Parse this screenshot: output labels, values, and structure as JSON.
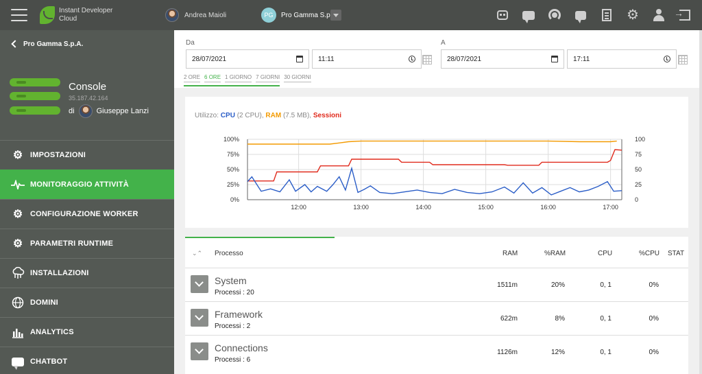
{
  "topbar": {
    "brand_line1": "Instant Developer",
    "brand_line2": "Cloud",
    "user_name": "Andrea Maioli",
    "company_initials": "PG",
    "company_name": "Pro Gamma S.p.A.",
    "icons": [
      "robot-icon",
      "chat-icon",
      "support-icon",
      "feedback-icon",
      "document-icon",
      "gear-icon",
      "user-icon",
      "logout-icon"
    ]
  },
  "sidebar": {
    "back_label": "Pro Gamma S.p.A.",
    "console_title": "Console",
    "console_ip": "35.187.42.164",
    "console_by": "di",
    "console_owner": "Giuseppe Lanzi",
    "items": [
      {
        "label": "IMPOSTAZIONI",
        "icon": "gear-icon"
      },
      {
        "label": "MONITORAGGIO ATTIVITÀ",
        "icon": "pulse-icon",
        "active": true
      },
      {
        "label": "CONFIGURAZIONE WORKER",
        "icon": "gear-icon"
      },
      {
        "label": "PARAMETRI RUNTIME",
        "icon": "gear-icon"
      },
      {
        "label": "INSTALLAZIONI",
        "icon": "cloud-icon"
      },
      {
        "label": "DOMINI",
        "icon": "globe-icon"
      },
      {
        "label": "ANALYTICS",
        "icon": "bar-chart-icon"
      },
      {
        "label": "CHATBOT",
        "icon": "chat-icon"
      }
    ]
  },
  "filters": {
    "from_label": "Da",
    "to_label": "A",
    "from_date": "28/07/2021",
    "from_time": "11:11",
    "to_date": "28/07/2021",
    "to_time": "17:11",
    "quick_ranges": [
      "2 ORE",
      "6 ORE",
      "1 GIORNO",
      "7 GIORNI",
      "30 GIORNI"
    ],
    "quick_selected": "6 ORE"
  },
  "legend": {
    "prefix": "Utilizzo:",
    "cpu": "CPU",
    "cpu_detail": "(2 CPU),",
    "ram": "RAM",
    "ram_detail": "(7.5 MB),",
    "sessions": "Sessioni"
  },
  "colors": {
    "cpu": "#2a5dc7",
    "ram": "#f39a00",
    "sessions": "#e02a1c",
    "accent": "#43b24a"
  },
  "chart_data": {
    "type": "line",
    "x_ticks": [
      "12:00",
      "13:00",
      "14:00",
      "15:00",
      "16:00",
      "17:00"
    ],
    "x_start": 11.18,
    "x_end": 17.18,
    "y_left_ticks": [
      "100%",
      "75%",
      "50%",
      "25%",
      "0%"
    ],
    "y_right_ticks": [
      "100",
      "75",
      "50",
      "25",
      "0"
    ],
    "ylim": [
      0,
      100
    ],
    "grid": true,
    "series": [
      {
        "name": "RAM",
        "x": [
          11.18,
          11.6,
          12.5,
          12.65,
          12.8,
          13.0,
          14.0,
          15.0,
          16.0,
          16.5,
          17.0,
          17.1
        ],
        "values": [
          92,
          92,
          92,
          94,
          96,
          97,
          97,
          97,
          97,
          96,
          96,
          97
        ]
      },
      {
        "name": "Sessioni",
        "x": [
          11.18,
          11.6,
          11.65,
          12.3,
          12.35,
          12.8,
          12.85,
          13.6,
          13.65,
          14.1,
          14.15,
          15.3,
          15.35,
          15.85,
          15.9,
          16.95,
          17.0,
          17.07,
          17.18
        ],
        "values": [
          31,
          31,
          46,
          46,
          56,
          56,
          67,
          67,
          62,
          62,
          58,
          58,
          57,
          57,
          62,
          62,
          65,
          83,
          82
        ]
      },
      {
        "name": "CPU",
        "x": [
          11.18,
          11.25,
          11.4,
          11.55,
          11.7,
          11.85,
          11.95,
          12.1,
          12.2,
          12.3,
          12.45,
          12.55,
          12.65,
          12.75,
          12.85,
          12.95,
          13.05,
          13.15,
          13.3,
          13.5,
          13.7,
          13.9,
          14.1,
          14.3,
          14.5,
          14.7,
          14.9,
          15.1,
          15.3,
          15.45,
          15.6,
          15.75,
          15.9,
          16.05,
          16.2,
          16.35,
          16.5,
          16.65,
          16.8,
          16.95,
          17.05,
          17.18
        ],
        "values": [
          30,
          38,
          14,
          18,
          13,
          33,
          14,
          25,
          13,
          22,
          14,
          25,
          38,
          16,
          52,
          12,
          17,
          23,
          12,
          10,
          13,
          16,
          12,
          10,
          17,
          12,
          10,
          13,
          21,
          11,
          28,
          11,
          20,
          8,
          14,
          20,
          13,
          16,
          22,
          30,
          14,
          15
        ]
      }
    ]
  },
  "table": {
    "headers": {
      "process": "Processo",
      "ram": "RAM",
      "pram": "%RAM",
      "cpu": "CPU",
      "pcpu": "%CPU",
      "stat": "STAT"
    },
    "rows": [
      {
        "name": "System",
        "sub": "Processi : 20",
        "ram": "1511m",
        "pram": "20%",
        "cpu": "0, 1",
        "pcpu": "0%"
      },
      {
        "name": "Framework",
        "sub": "Processi : 2",
        "ram": "622m",
        "pram": "8%",
        "cpu": "0, 1",
        "pcpu": "0%"
      },
      {
        "name": "Connections",
        "sub": "Processi : 6",
        "ram": "1126m",
        "pram": "12%",
        "cpu": "0, 1",
        "pcpu": "0%"
      }
    ]
  }
}
